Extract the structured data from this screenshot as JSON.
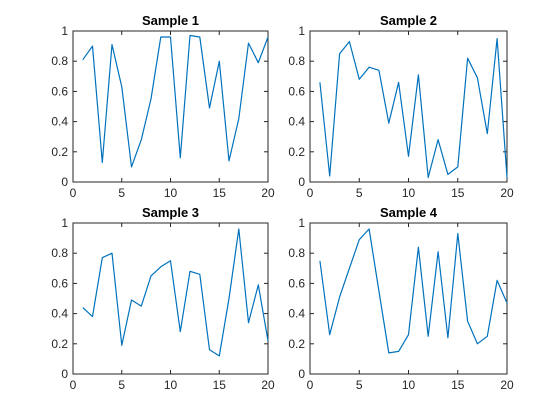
{
  "figure": {
    "background": "#ffffff",
    "axes_color": "#262626",
    "line_color": "#0072bd"
  },
  "chart_data": [
    {
      "type": "line",
      "title": "Sample 1",
      "xlim": [
        0,
        20
      ],
      "ylim": [
        0,
        1
      ],
      "xticks": [
        0,
        5,
        10,
        15,
        20
      ],
      "yticks": [
        0,
        0.2,
        0.4,
        0.6,
        0.8,
        1
      ],
      "xtick_labels": [
        "0",
        "5",
        "10",
        "15",
        "20"
      ],
      "ytick_labels": [
        "0",
        "0.2",
        "0.4",
        "0.6",
        "0.8",
        "1"
      ],
      "grid": false,
      "x": [
        1,
        2,
        3,
        4,
        5,
        6,
        7,
        8,
        9,
        10,
        11,
        12,
        13,
        14,
        15,
        16,
        17,
        18,
        19,
        20
      ],
      "values": [
        0.81,
        0.9,
        0.13,
        0.91,
        0.63,
        0.1,
        0.28,
        0.55,
        0.96,
        0.96,
        0.16,
        0.97,
        0.96,
        0.49,
        0.8,
        0.14,
        0.42,
        0.92,
        0.79,
        0.96
      ]
    },
    {
      "type": "line",
      "title": "Sample 2",
      "xlim": [
        0,
        20
      ],
      "ylim": [
        0,
        1
      ],
      "xticks": [
        0,
        5,
        10,
        15,
        20
      ],
      "yticks": [
        0,
        0.2,
        0.4,
        0.6,
        0.8,
        1
      ],
      "xtick_labels": [
        "0",
        "5",
        "10",
        "15",
        "20"
      ],
      "ytick_labels": [
        "0",
        "0.2",
        "0.4",
        "0.6",
        "0.8",
        "1"
      ],
      "grid": false,
      "x": [
        1,
        2,
        3,
        4,
        5,
        6,
        7,
        8,
        9,
        10,
        11,
        12,
        13,
        14,
        15,
        16,
        17,
        18,
        19,
        20
      ],
      "values": [
        0.66,
        0.04,
        0.85,
        0.93,
        0.68,
        0.76,
        0.74,
        0.39,
        0.66,
        0.17,
        0.71,
        0.03,
        0.28,
        0.05,
        0.1,
        0.82,
        0.69,
        0.32,
        0.95,
        0.03
      ]
    },
    {
      "type": "line",
      "title": "Sample 3",
      "xlim": [
        0,
        20
      ],
      "ylim": [
        0,
        1
      ],
      "xticks": [
        0,
        5,
        10,
        15,
        20
      ],
      "yticks": [
        0,
        0.2,
        0.4,
        0.6,
        0.8,
        1
      ],
      "xtick_labels": [
        "0",
        "5",
        "10",
        "15",
        "20"
      ],
      "ytick_labels": [
        "0",
        "0.2",
        "0.4",
        "0.6",
        "0.8",
        "1"
      ],
      "grid": false,
      "x": [
        1,
        2,
        3,
        4,
        5,
        6,
        7,
        8,
        9,
        10,
        11,
        12,
        13,
        14,
        15,
        16,
        17,
        18,
        19,
        20
      ],
      "values": [
        0.44,
        0.38,
        0.77,
        0.8,
        0.19,
        0.49,
        0.45,
        0.65,
        0.71,
        0.75,
        0.28,
        0.68,
        0.66,
        0.16,
        0.12,
        0.5,
        0.96,
        0.34,
        0.59,
        0.22
      ]
    },
    {
      "type": "line",
      "title": "Sample 4",
      "xlim": [
        0,
        20
      ],
      "ylim": [
        0,
        1
      ],
      "xticks": [
        0,
        5,
        10,
        15,
        20
      ],
      "yticks": [
        0,
        0.2,
        0.4,
        0.6,
        0.8,
        1
      ],
      "xtick_labels": [
        "0",
        "5",
        "10",
        "15",
        "20"
      ],
      "ytick_labels": [
        "0",
        "0.2",
        "0.4",
        "0.6",
        "0.8",
        "1"
      ],
      "grid": false,
      "x": [
        1,
        2,
        3,
        4,
        5,
        6,
        7,
        8,
        9,
        10,
        11,
        12,
        13,
        14,
        15,
        16,
        17,
        18,
        19,
        20
      ],
      "values": [
        0.75,
        0.26,
        0.51,
        0.7,
        0.89,
        0.96,
        0.55,
        0.14,
        0.15,
        0.26,
        0.84,
        0.25,
        0.81,
        0.24,
        0.93,
        0.35,
        0.2,
        0.25,
        0.62,
        0.47
      ]
    }
  ]
}
